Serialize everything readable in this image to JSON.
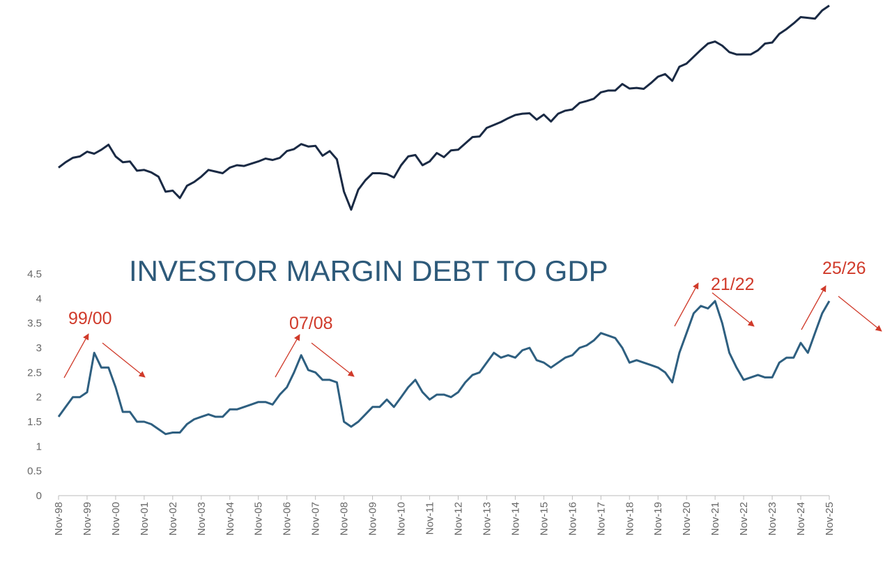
{
  "chart_data": [
    {
      "type": "line",
      "log_scale": true,
      "ylim": [
        680,
        6800
      ],
      "color": "#1a2a44",
      "values": [
        1170,
        1240,
        1300,
        1320,
        1390,
        1360,
        1420,
        1500,
        1320,
        1240,
        1250,
        1130,
        1140,
        1110,
        1060,
        900,
        910,
        840,
        960,
        1000,
        1060,
        1140,
        1120,
        1100,
        1170,
        1200,
        1190,
        1220,
        1250,
        1290,
        1270,
        1300,
        1400,
        1430,
        1510,
        1470,
        1480,
        1330,
        1400,
        1280,
        900,
        740,
        920,
        1020,
        1100,
        1100,
        1090,
        1050,
        1200,
        1320,
        1340,
        1200,
        1250,
        1370,
        1310,
        1410,
        1420,
        1520,
        1630,
        1640,
        1800,
        1860,
        1920,
        2000,
        2070,
        2100,
        2110,
        1970,
        2080,
        1930,
        2100,
        2170,
        2200,
        2360,
        2410,
        2470,
        2650,
        2700,
        2700,
        2900,
        2760,
        2780,
        2750,
        2930,
        3140,
        3230,
        3000,
        3500,
        3620,
        3900,
        4200,
        4500,
        4600,
        4400,
        4100,
        4000,
        4000,
        4000,
        4180,
        4500,
        4550,
        5000,
        5270,
        5600,
        6000,
        5950,
        5900,
        6450,
        6800
      ]
    },
    {
      "type": "line",
      "title": "INVESTOR MARGIN DEBT TO GDP",
      "color": "#2e5f80",
      "ylim": [
        0,
        4.5
      ],
      "yticks": [
        0,
        0.5,
        1,
        1.5,
        2,
        2.5,
        3,
        3.5,
        4,
        4.5
      ],
      "annotations": [
        "99/00",
        "07/08",
        "21/22",
        "25/26"
      ],
      "categories": [
        "Nov-98",
        null,
        null,
        null,
        "Nov-99",
        null,
        null,
        null,
        "Nov-00",
        null,
        null,
        null,
        "Nov-01",
        null,
        null,
        null,
        "Nov-02",
        null,
        null,
        null,
        "Nov-03",
        null,
        null,
        null,
        "Nov-04",
        null,
        null,
        null,
        "Nov-05",
        null,
        null,
        null,
        "Nov-06",
        null,
        null,
        null,
        "Nov-07",
        null,
        null,
        null,
        "Nov-08",
        null,
        null,
        null,
        "Nov-09",
        null,
        null,
        null,
        "Nov-10",
        null,
        null,
        null,
        "Nov-11",
        null,
        null,
        null,
        "Nov-12",
        null,
        null,
        null,
        "Nov-13",
        null,
        null,
        null,
        "Nov-14",
        null,
        null,
        null,
        "Nov-15",
        null,
        null,
        null,
        "Nov-16",
        null,
        null,
        null,
        "Nov-17",
        null,
        null,
        null,
        "Nov-18",
        null,
        null,
        null,
        "Nov-19",
        null,
        null,
        null,
        "Nov-20",
        null,
        null,
        null,
        "Nov-21",
        null,
        null,
        null,
        "Nov-22",
        null,
        null,
        null,
        "Nov-23",
        null,
        null,
        null,
        "Nov-24",
        null,
        null,
        null,
        "Nov-25"
      ],
      "values": [
        1.6,
        1.8,
        2.0,
        2.0,
        2.1,
        2.9,
        2.6,
        2.6,
        2.2,
        1.7,
        1.7,
        1.5,
        1.5,
        1.45,
        1.35,
        1.25,
        1.28,
        1.28,
        1.45,
        1.55,
        1.6,
        1.65,
        1.6,
        1.6,
        1.75,
        1.75,
        1.8,
        1.85,
        1.9,
        1.9,
        1.85,
        2.05,
        2.2,
        2.5,
        2.85,
        2.55,
        2.5,
        2.35,
        2.35,
        2.3,
        1.5,
        1.4,
        1.5,
        1.65,
        1.8,
        1.8,
        1.95,
        1.8,
        2.0,
        2.2,
        2.35,
        2.1,
        1.95,
        2.05,
        2.05,
        2.0,
        2.1,
        2.3,
        2.45,
        2.5,
        2.7,
        2.9,
        2.8,
        2.85,
        2.8,
        2.95,
        3.0,
        2.75,
        2.7,
        2.6,
        2.7,
        2.8,
        2.85,
        3.0,
        3.05,
        3.15,
        3.3,
        3.25,
        3.2,
        3.0,
        2.7,
        2.75,
        2.7,
        2.65,
        2.6,
        2.5,
        2.3,
        2.9,
        3.3,
        3.7,
        3.85,
        3.8,
        3.95,
        3.5,
        2.9,
        2.6,
        2.35,
        2.4,
        2.45,
        2.4,
        2.4,
        2.7,
        2.8,
        2.8,
        3.1,
        2.9,
        3.3,
        3.7,
        3.95
      ]
    }
  ]
}
